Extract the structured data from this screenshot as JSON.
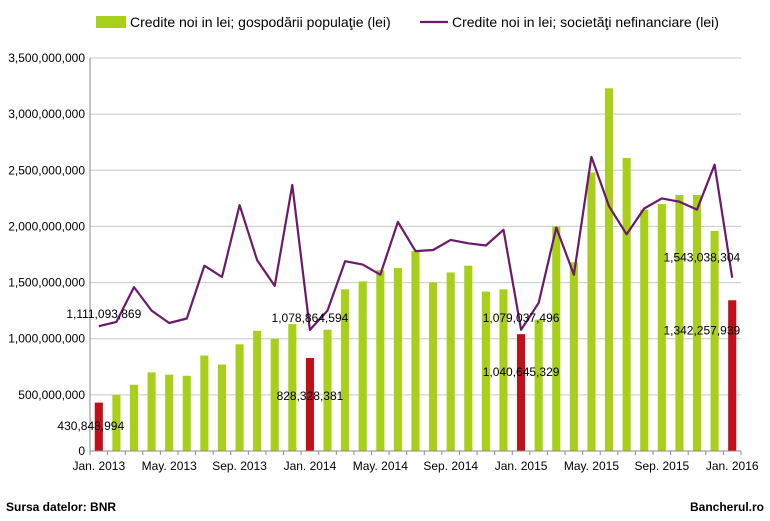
{
  "chart_data": {
    "type": "bar",
    "x_labels": [
      "Jan. 2013",
      "May. 2013",
      "Sep. 2013",
      "Jan. 2014",
      "May. 2014",
      "Sep. 2014",
      "Jan. 2015",
      "May. 2015",
      "Sep. 2015",
      "Jan. 2016"
    ],
    "categories": [
      "Jan. 2013",
      "Feb. 2013",
      "Mar. 2013",
      "Apr. 2013",
      "May. 2013",
      "Jun. 2013",
      "Jul. 2013",
      "Aug. 2013",
      "Sep. 2013",
      "Oct. 2013",
      "Nov. 2013",
      "Dec. 2013",
      "Jan. 2014",
      "Feb. 2014",
      "Mar. 2014",
      "Apr. 2014",
      "May. 2014",
      "Jun. 2014",
      "Jul. 2014",
      "Aug. 2014",
      "Sep. 2014",
      "Oct. 2014",
      "Nov. 2014",
      "Dec. 2014",
      "Jan. 2015",
      "Feb. 2015",
      "Mar. 2015",
      "Apr. 2015",
      "May. 2015",
      "Jun. 2015",
      "Jul. 2015",
      "Aug. 2015",
      "Sep. 2015",
      "Oct. 2015",
      "Nov. 2015",
      "Dec. 2015",
      "Jan. 2016"
    ],
    "y_ticks": [
      "0",
      "500,000,000",
      "1,000,000,000",
      "1,500,000,000",
      "2,000,000,000",
      "2,500,000,000",
      "3,000,000,000",
      "3,500,000,000"
    ],
    "ylim": [
      0,
      3500000000
    ],
    "grid": true,
    "legend_position": "top",
    "series": [
      {
        "name": "Credite noi in lei; gospodării populaţie (lei)",
        "kind": "bar",
        "color": "#a8cf1a",
        "highlight_color": "#c0101a",
        "highlight_indices": [
          0,
          12,
          24,
          36
        ],
        "values": [
          430848994,
          500000000,
          590000000,
          700000000,
          680000000,
          670000000,
          850000000,
          770000000,
          950000000,
          1070000000,
          1000000000,
          1130000000,
          828328381,
          1080000000,
          1440000000,
          1510000000,
          1610000000,
          1630000000,
          1780000000,
          1500000000,
          1590000000,
          1650000000,
          1420000000,
          1440000000,
          1040645329,
          1170000000,
          2000000000,
          1680000000,
          2480000000,
          3230000000,
          2610000000,
          2150000000,
          2200000000,
          2280000000,
          2280000000,
          1960000000,
          1342257939
        ]
      },
      {
        "name": "Credite noi in lei; societăţi nefinanciare (lei)",
        "kind": "line",
        "color": "#6b1a6b",
        "values": [
          1111093869,
          1150000000,
          1460000000,
          1250000000,
          1140000000,
          1180000000,
          1650000000,
          1550000000,
          2190000000,
          1700000000,
          1470000000,
          2370000000,
          1078864594,
          1250000000,
          1690000000,
          1660000000,
          1570000000,
          2040000000,
          1780000000,
          1790000000,
          1880000000,
          1850000000,
          1830000000,
          1970000000,
          1079037496,
          1320000000,
          1990000000,
          1570000000,
          2620000000,
          2180000000,
          1930000000,
          2160000000,
          2250000000,
          2220000000,
          2150000000,
          2550000000,
          1543038304
        ]
      }
    ],
    "data_labels": [
      {
        "series": 1,
        "index": 0,
        "text": "1,111,093,869"
      },
      {
        "series": 1,
        "index": 12,
        "text": "1,078,864,594"
      },
      {
        "series": 1,
        "index": 24,
        "text": "1,079,037,496"
      },
      {
        "series": 1,
        "index": 36,
        "text": "1,543,038,304"
      },
      {
        "series": 0,
        "index": 0,
        "text": "430,848,994"
      },
      {
        "series": 0,
        "index": 12,
        "text": "828,328,381"
      },
      {
        "series": 0,
        "index": 24,
        "text": "1,040,645,329"
      },
      {
        "series": 0,
        "index": 36,
        "text": "1,342,257,939"
      }
    ]
  },
  "footer": {
    "source": "Sursa datelor: BNR",
    "brand": "Bancherul.ro"
  }
}
